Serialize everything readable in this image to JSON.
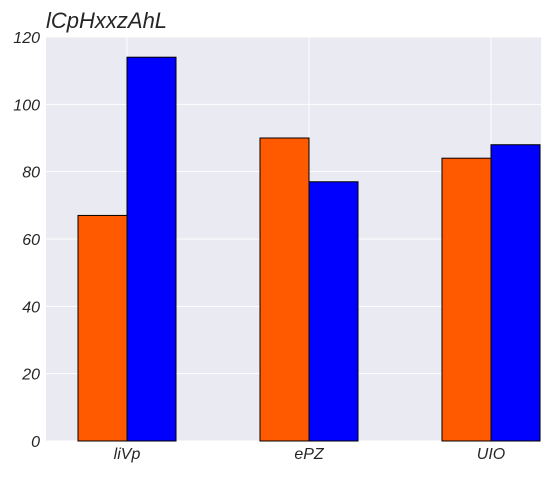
{
  "chart_data": {
    "type": "bar",
    "title": "lCpHxxzAhL",
    "xlabel": "",
    "ylabel": "",
    "categories": [
      "liVp",
      "ePZ",
      "UIO"
    ],
    "series": [
      {
        "values": [
          67,
          90,
          84
        ],
        "color": "#ff5a00"
      },
      {
        "values": [
          114,
          77,
          88
        ],
        "color": "#0000ff"
      }
    ],
    "ylim": [
      0,
      120
    ],
    "yticks": [
      0,
      20,
      40,
      60,
      80,
      100,
      120
    ],
    "grid": true,
    "legend": "none",
    "plot_background": "#eaeaf2",
    "grid_color": "#ffffff"
  }
}
